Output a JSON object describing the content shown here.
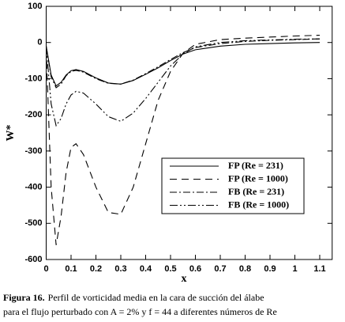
{
  "chart_data": {
    "type": "line",
    "x_label": "x",
    "y_label": "W*",
    "x": [
      0,
      0.02,
      0.04,
      0.06,
      0.08,
      0.1,
      0.12,
      0.15,
      0.2,
      0.25,
      0.3,
      0.35,
      0.4,
      0.45,
      0.5,
      0.55,
      0.6,
      0.7,
      0.8,
      0.9,
      1.0,
      1.1
    ],
    "series": [
      {
        "name": "FP (Re = 231)",
        "color": "#000000",
        "dash": "solid",
        "values": [
          -10,
          -90,
          -120,
          -110,
          -90,
          -78,
          -75,
          -80,
          -98,
          -112,
          -115,
          -105,
          -88,
          -70,
          -50,
          -32,
          -20,
          -10,
          -5,
          -3,
          -1,
          0
        ]
      },
      {
        "name": "FP (Re = 1000)",
        "color": "#000000",
        "dash": "dashed",
        "values": [
          -20,
          -400,
          -560,
          -480,
          -360,
          -290,
          -280,
          -310,
          -400,
          -470,
          -475,
          -400,
          -280,
          -160,
          -80,
          -30,
          -5,
          8,
          12,
          15,
          18,
          20
        ]
      },
      {
        "name": "FB (Re = 231)",
        "color": "#000000",
        "dash": "dashdot",
        "values": [
          -10,
          -95,
          -125,
          -115,
          -92,
          -80,
          -77,
          -82,
          -100,
          -113,
          -115,
          -104,
          -86,
          -67,
          -47,
          -28,
          -14,
          -3,
          3,
          6,
          8,
          10
        ]
      },
      {
        "name": "FB (Re = 1000)",
        "color": "#000000",
        "dash": "dashdotdot",
        "values": [
          -10,
          -170,
          -230,
          -210,
          -170,
          -145,
          -135,
          -140,
          -170,
          -205,
          -218,
          -195,
          -155,
          -110,
          -65,
          -32,
          -12,
          0,
          5,
          7,
          9,
          10
        ]
      }
    ],
    "xlim": [
      0,
      1.15
    ],
    "ylim": [
      -600,
      100
    ],
    "xticks": [
      0,
      0.1,
      0.2,
      0.3,
      0.4,
      0.5,
      0.6,
      0.7,
      0.8,
      0.9,
      1,
      1.1
    ],
    "yticks": [
      100,
      0,
      -100,
      -200,
      -300,
      -400,
      -500,
      -600
    ],
    "grid": false,
    "caption_label": "Figura 16.",
    "caption_lines": [
      "Perfil de vorticidad media en la cara de succión del álabe",
      "para el flujo perturbado con A = 2% y f = 44 a diferentes números de Re"
    ]
  }
}
